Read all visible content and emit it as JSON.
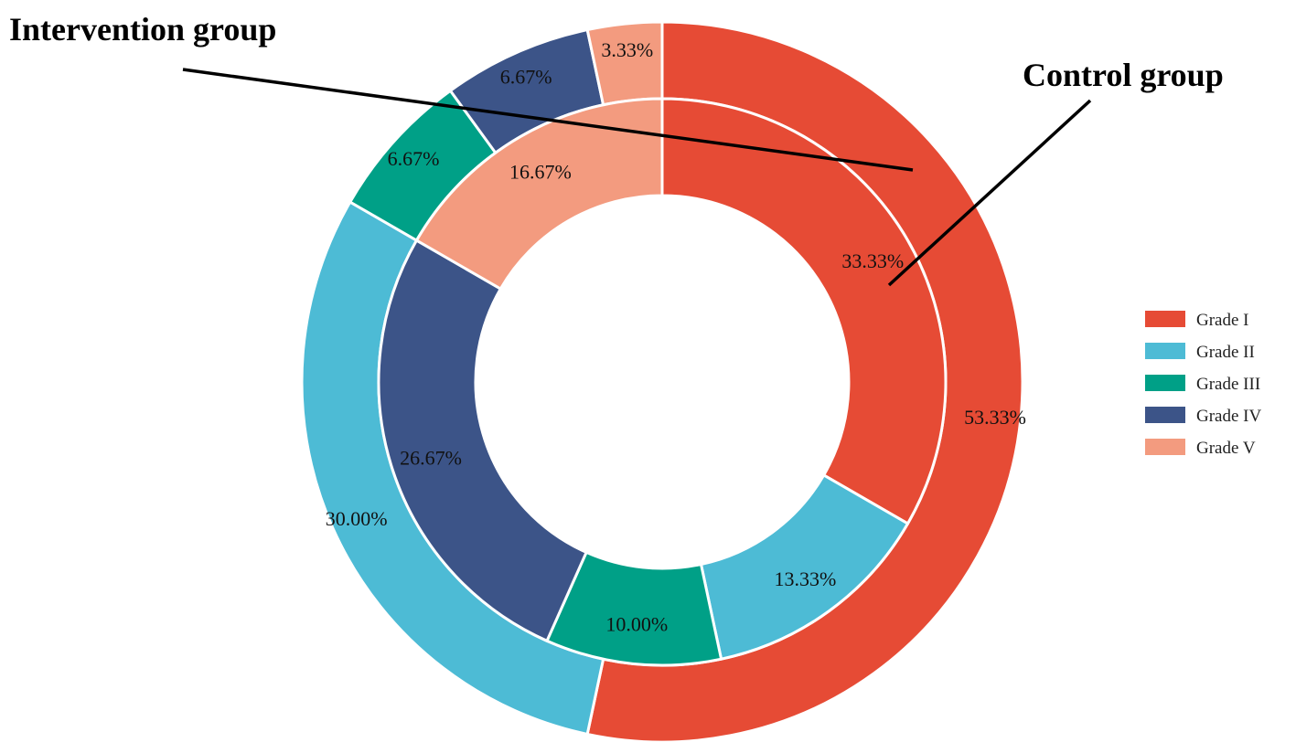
{
  "chart_data": {
    "type": "pie",
    "variant": "nested-donut",
    "categories": [
      "Grade I",
      "Grade II",
      "Grade III",
      "Grade IV",
      "Grade V"
    ],
    "colors": [
      "#E64B35",
      "#4DBBD5",
      "#00A087",
      "#3C5488",
      "#F39B7F"
    ],
    "series": [
      {
        "name": "Control group",
        "ring": "inner",
        "values": [
          33.33,
          13.33,
          10.0,
          26.67,
          16.67
        ],
        "labels": [
          "33.33%",
          "13.33%",
          "10.00%",
          "26.67%",
          "16.67%"
        ]
      },
      {
        "name": "Intervention group",
        "ring": "outer",
        "values": [
          53.33,
          30.0,
          6.67,
          6.67,
          3.33
        ],
        "labels": [
          "53.33%",
          "30.00%",
          "6.67%",
          "6.67%",
          "3.33%"
        ]
      }
    ],
    "legend": {
      "placement": "right",
      "entries": [
        "Grade I",
        "Grade II",
        "Grade III",
        "Grade IV",
        "Grade V"
      ]
    },
    "annotations": [
      "Intervention group",
      "Control group"
    ]
  }
}
